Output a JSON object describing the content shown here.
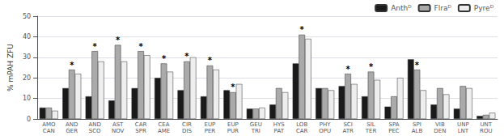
{
  "chart_data": {
    "type": "bar",
    "ylabel": "% mPAH ZFU",
    "categories": [
      "AMO\nCAN",
      "AND\nGER",
      "AND\nSCO",
      "AST\nNOV",
      "CAR\nSPR",
      "CEA\nAME",
      "CIR\nDIS",
      "EUP\nPER",
      "EUP\nPUR",
      "GEU\nTRI",
      "HYS\nPAT",
      "LOB\nCAR",
      "PHY\nOPU",
      "SCI\nATR",
      "SIL\nTER",
      "SPA\nPEC",
      "SPI\nALB",
      "VIB\nDEN",
      "UNP\nLNT",
      "UNT\nROU"
    ],
    "series": [
      {
        "name": "Anthᴰ",
        "color": "#1a1a1a",
        "values": [
          5.5,
          15,
          11,
          9,
          15,
          20,
          14,
          11,
          14,
          5,
          7,
          27,
          15,
          16,
          11,
          6,
          29,
          7,
          5,
          1.5
        ]
      },
      {
        "name": "Flraᴰ",
        "color": "#aaaaaa",
        "values": [
          5.5,
          24,
          33,
          36,
          33,
          27,
          28,
          26,
          13,
          5,
          15,
          41,
          15,
          22,
          23,
          11,
          24,
          15,
          16,
          2
        ]
      },
      {
        "name": "Pyreᴰ",
        "color": "#eeeeee",
        "values": [
          4,
          22,
          28,
          28,
          31,
          23,
          30,
          24,
          17,
          5.5,
          13,
          39,
          14,
          17,
          19,
          20,
          14,
          12,
          15,
          3
        ]
      }
    ],
    "annotations": [
      {
        "text": "*",
        "series": "Flraᴰ",
        "category": "AND\nGER"
      },
      {
        "text": "*",
        "series": "Flraᴰ",
        "category": "AND\nSCO"
      },
      {
        "text": "*",
        "series": "Flraᴰ",
        "category": "AST\nNOV"
      },
      {
        "text": "*",
        "series": "Flraᴰ",
        "category": "CAR\nSPR"
      },
      {
        "text": "*",
        "series": "Flraᴰ",
        "category": "CEA\nAME"
      },
      {
        "text": "*",
        "series": "Flraᴰ",
        "category": "CIR\nDIS"
      },
      {
        "text": "*",
        "series": "Flraᴰ",
        "category": "EUP\nPER"
      },
      {
        "text": "*",
        "series": "Flraᴰ",
        "category": "EUP\nPUR"
      },
      {
        "text": "*",
        "series": "Flraᴰ",
        "category": "LOB\nCAR"
      },
      {
        "text": "*",
        "series": "Flraᴰ",
        "category": "SCI\nATR"
      },
      {
        "text": "*",
        "series": "Flraᴰ",
        "category": "SIL\nTER"
      },
      {
        "text": "*",
        "series": "Flraᴰ",
        "category": "SPI\nALB"
      }
    ],
    "ylim": [
      0,
      50
    ],
    "yticks": [
      0,
      10,
      20,
      30,
      40,
      50
    ],
    "grid": true,
    "legend": "upper right"
  }
}
